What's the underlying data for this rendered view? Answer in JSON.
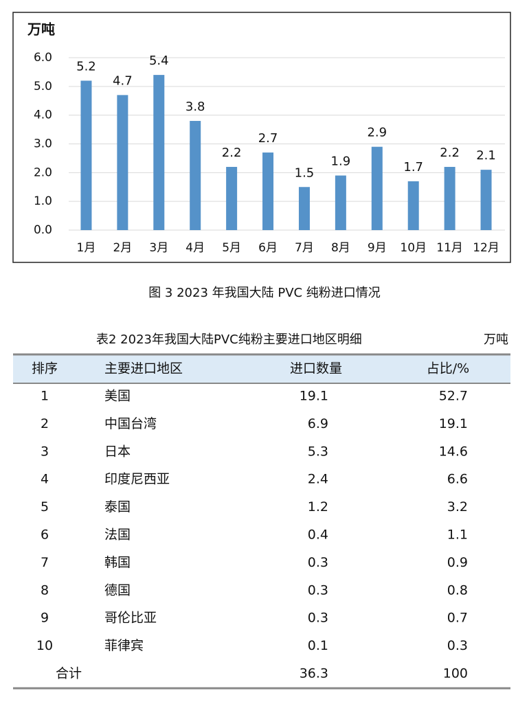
{
  "chart_data": {
    "type": "bar",
    "unit_label": "万吨",
    "categories": [
      "1月",
      "2月",
      "3月",
      "4月",
      "5月",
      "6月",
      "7月",
      "8月",
      "9月",
      "10月",
      "11月",
      "12月"
    ],
    "values": [
      5.2,
      4.7,
      5.4,
      3.8,
      2.2,
      2.7,
      1.5,
      1.9,
      2.9,
      1.7,
      2.2,
      2.1
    ],
    "color": "#5592c9",
    "ylim": [
      0,
      6
    ],
    "yticks": [
      {
        "value": 0,
        "label": "0.0"
      },
      {
        "value": 1,
        "label": "1.0"
      },
      {
        "value": 2,
        "label": "2.0"
      },
      {
        "value": 3,
        "label": "3.0"
      },
      {
        "value": 4,
        "label": "4.0"
      },
      {
        "value": 5,
        "label": "5.0"
      },
      {
        "value": 6,
        "label": "6.0"
      }
    ],
    "grid": true
  },
  "caption": "图 3  2023 年我国大陆 PVC 纯粉进口情况",
  "table": {
    "title": "表2  2023年我国大陆PVC纯粉主要进口地区明细",
    "unit": "万吨",
    "header": [
      "排序",
      "主要进口地区",
      "进口数量",
      "占比/%"
    ],
    "rows": [
      [
        "1",
        "美国",
        "19.1",
        "52.7"
      ],
      [
        "2",
        "中国台湾",
        "6.9",
        "19.1"
      ],
      [
        "3",
        "日本",
        "5.3",
        "14.6"
      ],
      [
        "4",
        "印度尼西亚",
        "2.4",
        "6.6"
      ],
      [
        "5",
        "泰国",
        "1.2",
        "3.2"
      ],
      [
        "6",
        "法国",
        "0.4",
        "1.1"
      ],
      [
        "7",
        "韩国",
        "0.3",
        "0.9"
      ],
      [
        "8",
        "德国",
        "0.3",
        "0.8"
      ],
      [
        "9",
        "哥伦比亚",
        "0.3",
        "0.7"
      ],
      [
        "10",
        "菲律宾",
        "0.1",
        "0.3"
      ]
    ],
    "total": {
      "label": "合计",
      "quantity": "36.3",
      "share": "100"
    }
  }
}
